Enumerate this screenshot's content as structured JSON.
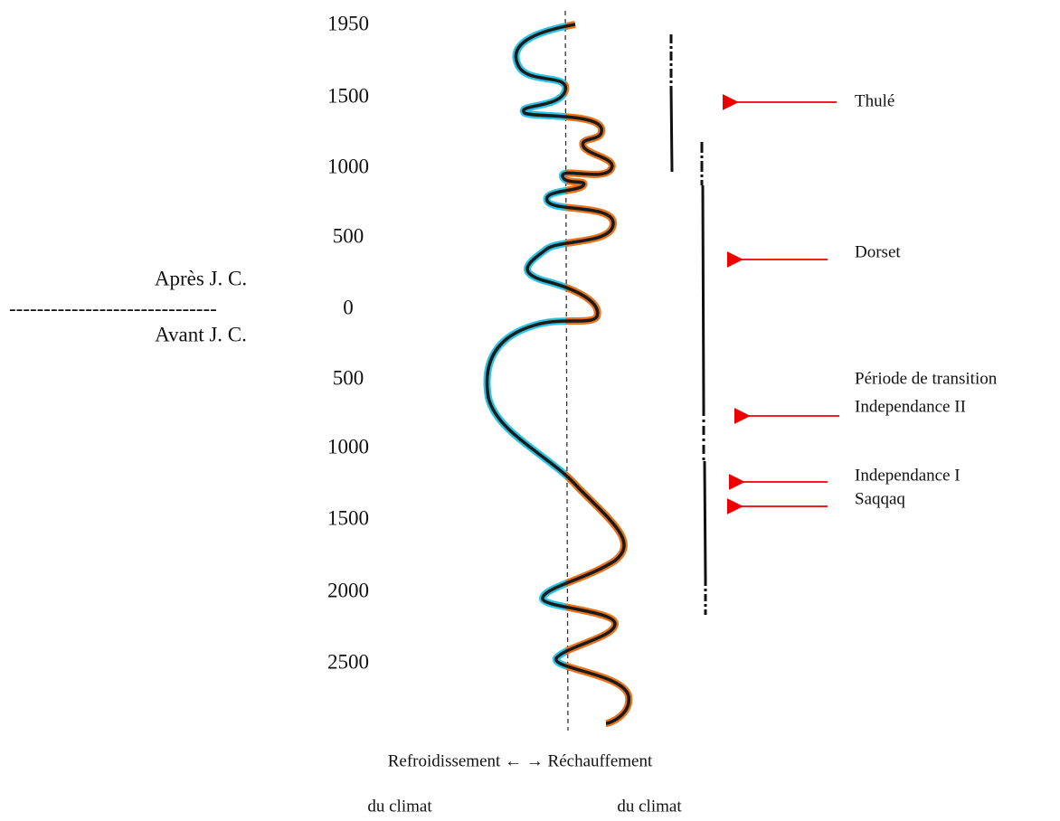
{
  "timeline": {
    "year_labels": [
      "1950",
      "1500",
      "1000",
      "500",
      "0",
      "500",
      "1000",
      "1500",
      "2000",
      "2500"
    ],
    "era": {
      "after": "Après J. C.",
      "separator": "------------------------------",
      "before": "Avant J. C."
    },
    "cultures": [
      "Thulé",
      "Dorset",
      "Période de transition",
      "Independance II",
      "Independance I",
      "Saqqaq"
    ],
    "caption": {
      "axis": "Refroidissement ← → Réchauffement",
      "left": "du climat",
      "right": "du climat"
    }
  }
}
